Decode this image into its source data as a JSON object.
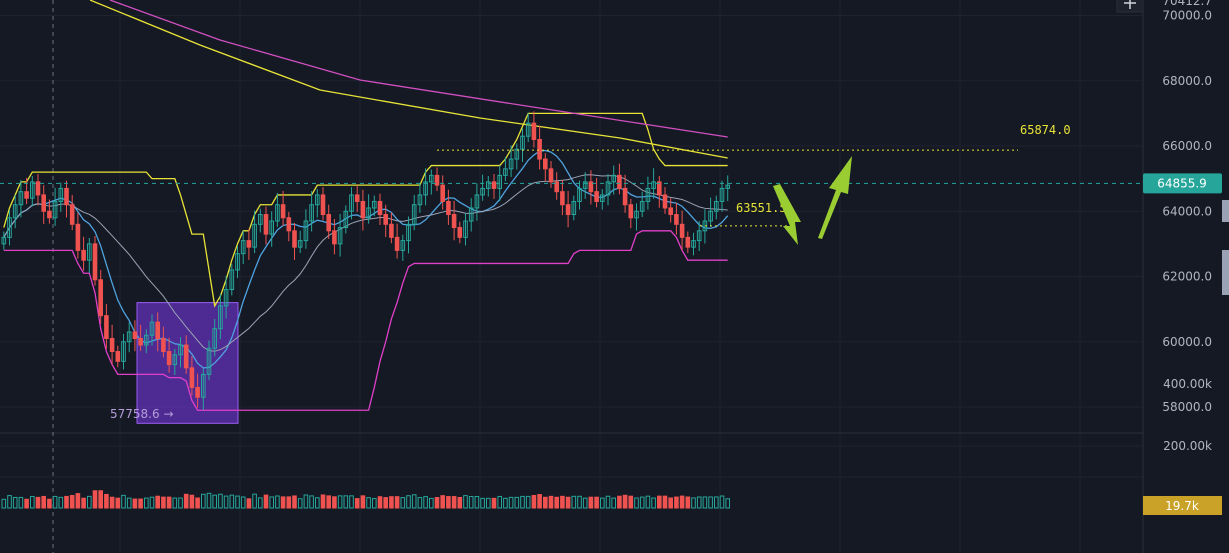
{
  "chart_data": {
    "type": "candlestick",
    "price_axis": {
      "range": [
        57200,
        70500
      ],
      "ticks": [
        "58000.0",
        "60000.0",
        "62000.0",
        "64000.0",
        "66000.0",
        "68000.0",
        "70000.0"
      ],
      "top_partial_label": "70412.7"
    },
    "volume_axis": {
      "range": [
        0,
        450000
      ],
      "ticks": [
        "200.00k",
        "400.00k"
      ]
    },
    "current_price": {
      "value": 64855.9,
      "label": "64855.9",
      "color": "#26a69a"
    },
    "current_volume": {
      "value": 19700,
      "label": "19.7k",
      "color": "#c9a227"
    },
    "annotations": [
      {
        "type": "dotted-level",
        "value": 65874.0,
        "label": "65874.0",
        "color": "#e8e337"
      },
      {
        "type": "dotted-level",
        "value": 63551.5,
        "label": "63551.5",
        "color": "#e8e337"
      },
      {
        "type": "low-marker",
        "value": 57758.6,
        "label": "57758.6",
        "arrow": "→",
        "color": "#b39ddb"
      },
      {
        "type": "box",
        "color": "#7c3aed"
      },
      {
        "type": "arrow",
        "direction": "down",
        "color": "#9acd32"
      },
      {
        "type": "arrow",
        "direction": "up",
        "color": "#9acd32"
      }
    ],
    "candles_close": [
      63200,
      63800,
      64200,
      64600,
      64400,
      64900,
      64500,
      64000,
      63800,
      64300,
      64700,
      64200,
      63600,
      62800,
      62500,
      63000,
      61900,
      60800,
      60100,
      59700,
      59400,
      60000,
      60300,
      60100,
      59900,
      60200,
      60600,
      60100,
      59700,
      59300,
      59600,
      59900,
      59200,
      58600,
      58300,
      59000,
      59800,
      60400,
      61100,
      61600,
      62200,
      62700,
      63100,
      62900,
      63600,
      63900,
      63300,
      63700,
      64200,
      63800,
      63400,
      62900,
      63100,
      63700,
      64200,
      64500,
      63900,
      63400,
      63000,
      63500,
      64000,
      64500,
      64300,
      63800,
      64100,
      64300,
      63900,
      63600,
      63200,
      62800,
      63100,
      63600,
      64200,
      64500,
      64900,
      65100,
      64800,
      64300,
      63900,
      63500,
      63200,
      63700,
      64100,
      64500,
      64700,
      64900,
      64700,
      65100,
      65300,
      65600,
      65900,
      66300,
      66700,
      66200,
      65600,
      65300,
      64900,
      64600,
      64200,
      63900,
      64300,
      64700,
      64900,
      64600,
      64300,
      64500,
      64900,
      65100,
      64700,
      64200,
      63800,
      64000,
      64300,
      64700,
      64900,
      64500,
      64100,
      63900,
      63600,
      63200,
      62900,
      63100,
      63400,
      63700,
      64000,
      64300,
      64700,
      64800
    ]
  },
  "series_legend": [
    {
      "color": "#e8e337",
      "role": "channel-upper"
    },
    {
      "color": "#e040c8",
      "role": "channel-lower"
    },
    {
      "color": "#4fa3e0",
      "role": "ma-fast"
    },
    {
      "color": "#9aa3b5",
      "role": "ma-slow"
    },
    {
      "color": "#e8e337",
      "role": "long-ma-1"
    },
    {
      "color": "#d04fc0",
      "role": "long-ma-2"
    }
  ]
}
